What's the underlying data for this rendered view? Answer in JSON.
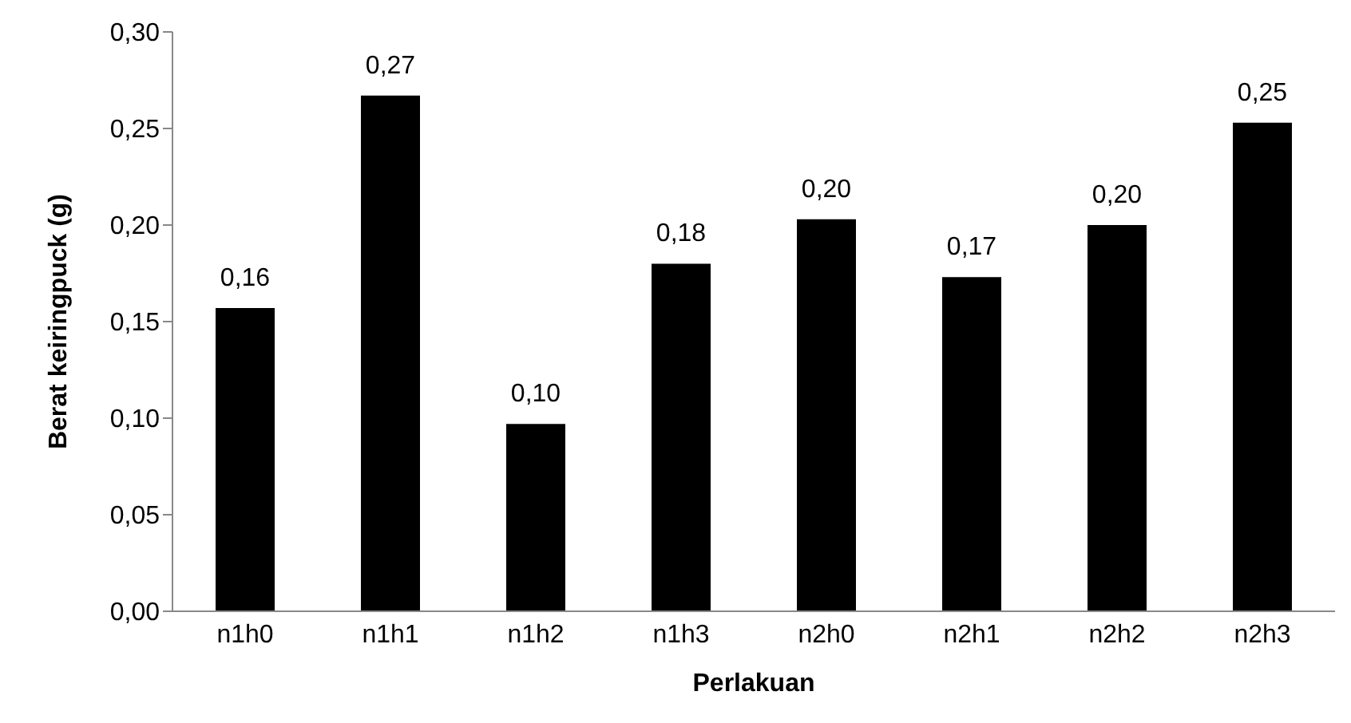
{
  "chart_data": {
    "type": "bar",
    "categories": [
      "n1h0",
      "n1h1",
      "n1h2",
      "n1h3",
      "n2h0",
      "n2h1",
      "n2h2",
      "n2h3"
    ],
    "values": [
      0.157,
      0.267,
      0.097,
      0.18,
      0.203,
      0.173,
      0.2,
      0.253
    ],
    "value_labels": [
      "0,16",
      "0,27",
      "0,10",
      "0,18",
      "0,20",
      "0,17",
      "0,20",
      "0,25"
    ],
    "color": "#000000",
    "xlabel": "Perlakuan",
    "ylabel": "Berat keiringpuck (g)",
    "ylim": [
      0,
      0.3
    ],
    "yticks": [
      {
        "value": 0,
        "label": "0,00"
      },
      {
        "value": 0.05,
        "label": "0,05"
      },
      {
        "value": 0.1,
        "label": "0,10"
      },
      {
        "value": 0.15,
        "label": "0,15"
      },
      {
        "value": 0.2,
        "label": "0,20"
      },
      {
        "value": 0.25,
        "label": "0,25"
      },
      {
        "value": 0.3,
        "label": "0,30"
      }
    ],
    "grid": false,
    "legend": false
  }
}
